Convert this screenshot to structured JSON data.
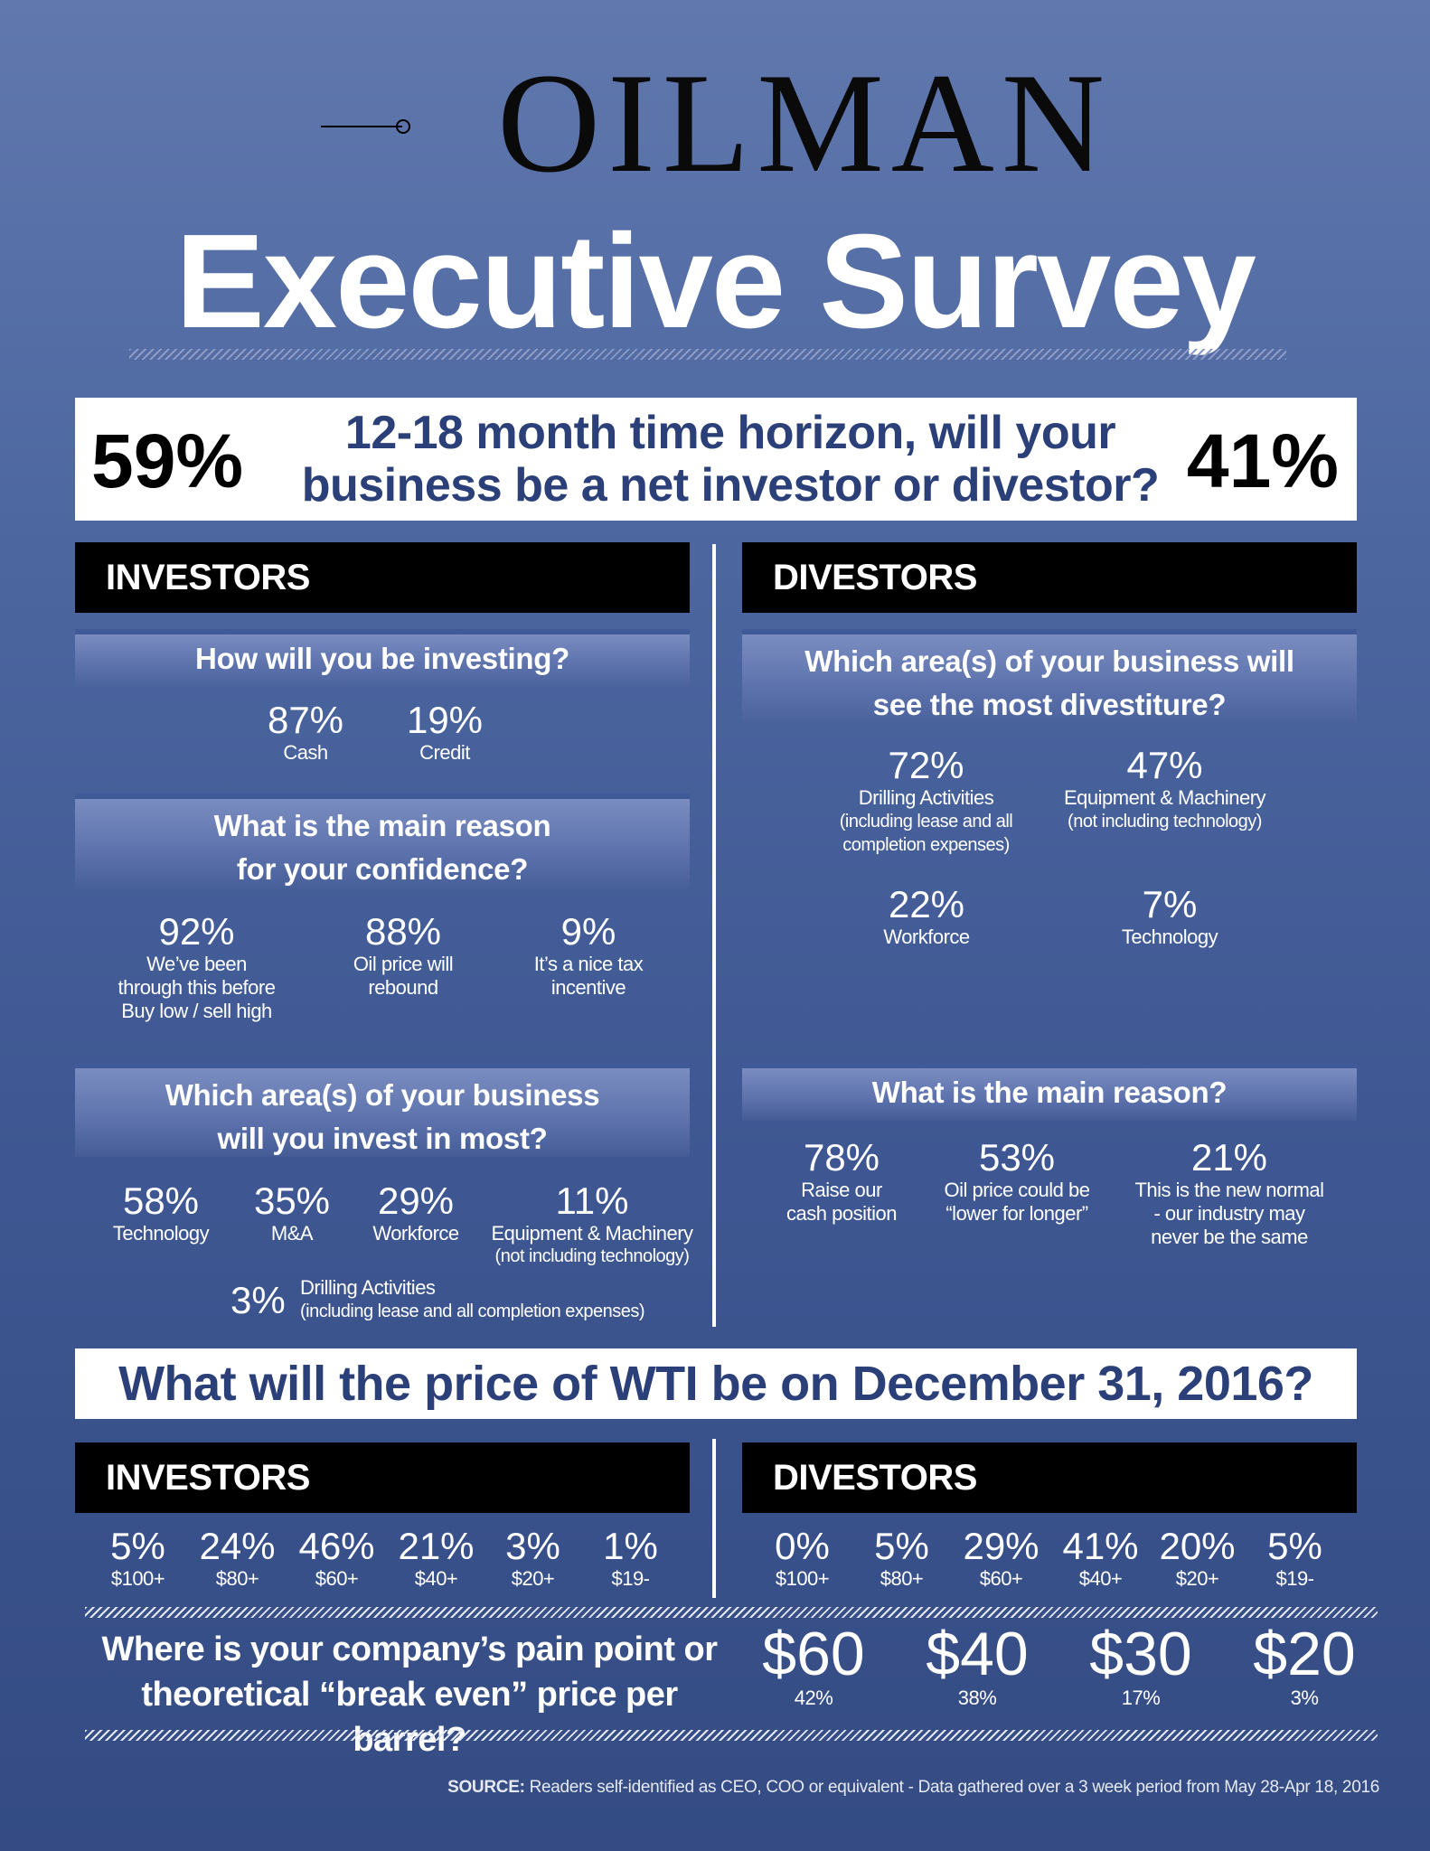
{
  "logo": {
    "text": "OILMAN"
  },
  "title": "Executive Survey",
  "horizon": {
    "question": "12-18 month time horizon, will your business be a net investor or divestor?",
    "investor_pct": "59%",
    "divestor_pct": "41%"
  },
  "investors": {
    "header": "INVESTORS",
    "q1": {
      "question": "How will you be investing?",
      "items": [
        {
          "pct": "87%",
          "label": "Cash"
        },
        {
          "pct": "19%",
          "label": "Credit"
        }
      ]
    },
    "q2": {
      "question": "What is the main reason for your confidence?",
      "items": [
        {
          "pct": "92%",
          "label": "We’ve been through this before Buy low / sell high"
        },
        {
          "pct": "88%",
          "label": "Oil price will rebound"
        },
        {
          "pct": "9%",
          "label": "It’s a nice tax incentive"
        }
      ]
    },
    "q3": {
      "question": "Which area(s) of your business will you invest in most?",
      "items": [
        {
          "pct": "58%",
          "label": "Technology"
        },
        {
          "pct": "35%",
          "label": "M&A"
        },
        {
          "pct": "29%",
          "label": "Workforce"
        },
        {
          "pct": "11%",
          "label": "Equipment & Machinery",
          "sub": "(not including technology)"
        },
        {
          "pct": "3%",
          "label": "Drilling Activities",
          "sub": "(including lease and all completion expenses)"
        }
      ]
    }
  },
  "divestors": {
    "header": "DIVESTORS",
    "q1": {
      "question": "Which area(s) of your business will see the most divestiture?",
      "items": [
        {
          "pct": "72%",
          "label": "Drilling Activities",
          "sub": "(including lease and all completion expenses)"
        },
        {
          "pct": "47%",
          "label": "Equipment & Machinery",
          "sub": "(not including technology)"
        },
        {
          "pct": "22%",
          "label": "Workforce"
        },
        {
          "pct": "7%",
          "label": "Technology"
        }
      ]
    },
    "q2": {
      "question": "What is the main reason?",
      "items": [
        {
          "pct": "78%",
          "label": "Raise our cash position"
        },
        {
          "pct": "53%",
          "label": "Oil price could be “lower for longer”"
        },
        {
          "pct": "21%",
          "label": "This is the new normal - our industry may never be the same"
        }
      ]
    }
  },
  "wti": {
    "question": "What will the price of WTI be on December 31, 2016?",
    "investors": {
      "header": "INVESTORS",
      "items": [
        {
          "pct": "5%",
          "price": "$100+"
        },
        {
          "pct": "24%",
          "price": "$80+"
        },
        {
          "pct": "46%",
          "price": "$60+"
        },
        {
          "pct": "21%",
          "price": "$40+"
        },
        {
          "pct": "3%",
          "price": "$20+"
        },
        {
          "pct": "1%",
          "price": "$19-"
        }
      ]
    },
    "divestors": {
      "header": "DIVESTORS",
      "items": [
        {
          "pct": "0%",
          "price": "$100+"
        },
        {
          "pct": "5%",
          "price": "$80+"
        },
        {
          "pct": "29%",
          "price": "$60+"
        },
        {
          "pct": "41%",
          "price": "$40+"
        },
        {
          "pct": "20%",
          "price": "$20+"
        },
        {
          "pct": "5%",
          "price": "$19-"
        }
      ]
    }
  },
  "breakeven": {
    "question": "Where is your company’s pain point or theoretical “break even” price per barrel?",
    "items": [
      {
        "price": "$60",
        "pct": "42%"
      },
      {
        "price": "$40",
        "pct": "38%"
      },
      {
        "price": "$30",
        "pct": "17%"
      },
      {
        "price": "$20",
        "pct": "3%"
      }
    ]
  },
  "source": {
    "label": "SOURCE:",
    "text": "Readers self-identified as CEO, COO or equivalent - Data gathered over a 3 week period from May 28-Apr 18, 2016"
  }
}
